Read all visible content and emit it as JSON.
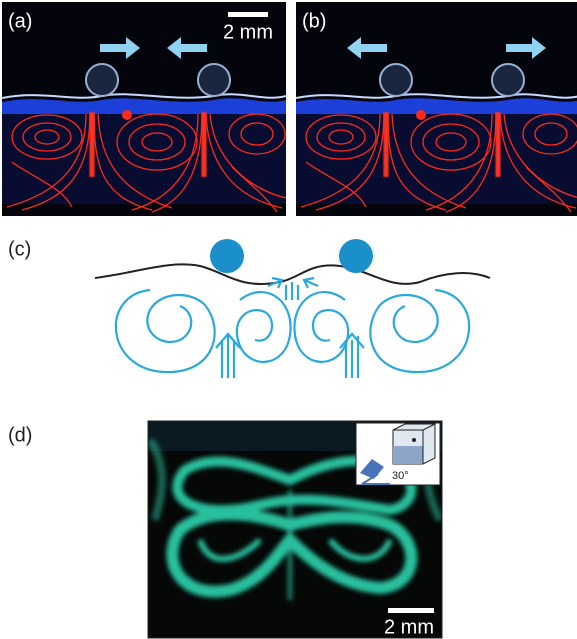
{
  "panels": {
    "a": {
      "label": "(a)",
      "scale_bar": "2 mm"
    },
    "b": {
      "label": "(b)"
    },
    "c": {
      "label": "(c)"
    },
    "d": {
      "label": "(d)",
      "scale_bar": "2 mm",
      "inset_angle": "30°"
    }
  }
}
